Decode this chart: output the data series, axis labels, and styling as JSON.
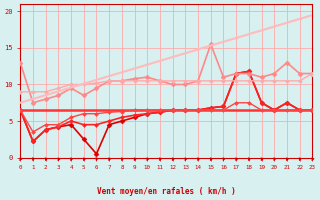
{
  "title": "",
  "xlabel": "Vent moyen/en rafales ( km/h )",
  "ylabel": "",
  "xlim": [
    0,
    23
  ],
  "ylim": [
    0,
    21
  ],
  "bg_color": "#d8f0f0",
  "grid_color": "#ffaaaa",
  "text_color": "#cc0000",
  "lines": [
    {
      "x": [
        0,
        1,
        2,
        3,
        4,
        5,
        6,
        7,
        8,
        9,
        10,
        11,
        12,
        13,
        14,
        15,
        16,
        17,
        18,
        19,
        20,
        21,
        22,
        23
      ],
      "y": [
        6.5,
        2.2,
        3.8,
        4.2,
        4.5,
        2.5,
        0.5,
        4.5,
        5.0,
        5.5,
        6.0,
        6.2,
        6.5,
        6.5,
        6.5,
        6.8,
        7.0,
        11.5,
        11.8,
        7.5,
        6.5,
        7.5,
        6.5,
        6.5
      ],
      "color": "#dd0000",
      "lw": 1.2,
      "marker": "D",
      "ms": 2.5
    },
    {
      "x": [
        0,
        1,
        2,
        3,
        4,
        5,
        6,
        7,
        8,
        9,
        10,
        11,
        12,
        13,
        14,
        15,
        16,
        17,
        18,
        19,
        20,
        21,
        22,
        23
      ],
      "y": [
        6.5,
        2.2,
        3.8,
        4.2,
        5.0,
        4.5,
        4.5,
        5.0,
        5.5,
        5.8,
        6.0,
        6.2,
        6.5,
        6.5,
        6.5,
        6.8,
        7.0,
        11.5,
        11.8,
        7.5,
        6.5,
        7.5,
        6.5,
        6.5
      ],
      "color": "#ff2222",
      "lw": 1.2,
      "marker": "D",
      "ms": 2.0
    },
    {
      "x": [
        0,
        1,
        2,
        3,
        4,
        5,
        6,
        7,
        8,
        9,
        10,
        11,
        12,
        13,
        14,
        15,
        16,
        17,
        18,
        19,
        20,
        21,
        22,
        23
      ],
      "y": [
        6.5,
        6.5,
        6.5,
        6.5,
        6.5,
        6.5,
        6.5,
        6.5,
        6.5,
        6.5,
        6.5,
        6.5,
        6.5,
        6.5,
        6.5,
        6.5,
        6.5,
        6.5,
        6.5,
        6.5,
        6.5,
        6.5,
        6.5,
        6.5
      ],
      "color": "#ff3333",
      "lw": 1.8,
      "marker": null,
      "ms": 0
    },
    {
      "x": [
        0,
        1,
        2,
        3,
        4,
        5,
        6,
        7,
        8,
        9,
        10,
        11,
        12,
        13,
        14,
        15,
        16,
        17,
        18,
        19,
        20,
        21,
        22,
        23
      ],
      "y": [
        6.5,
        3.5,
        4.5,
        4.5,
        5.5,
        6.0,
        6.0,
        6.2,
        6.3,
        6.5,
        6.5,
        6.5,
        6.5,
        6.5,
        6.5,
        6.5,
        6.5,
        7.5,
        7.5,
        6.5,
        6.5,
        6.5,
        6.5,
        6.5
      ],
      "color": "#ff4444",
      "lw": 1.0,
      "marker": "D",
      "ms": 2.0
    },
    {
      "x": [
        0,
        1,
        2,
        3,
        4,
        5,
        6,
        7,
        8,
        9,
        10,
        11,
        12,
        13,
        14,
        15,
        16,
        17,
        18,
        19,
        20,
        21,
        22,
        23
      ],
      "y": [
        13.0,
        7.5,
        8.0,
        8.5,
        9.5,
        8.5,
        9.5,
        10.5,
        10.5,
        10.8,
        11.0,
        10.5,
        10.0,
        10.0,
        10.5,
        15.5,
        11.0,
        11.5,
        11.5,
        11.0,
        11.5,
        13.0,
        11.5,
        11.5
      ],
      "color": "#ff8888",
      "lw": 1.2,
      "marker": "D",
      "ms": 2.5
    },
    {
      "x": [
        0,
        1,
        2,
        3,
        4,
        5,
        6,
        7,
        8,
        9,
        10,
        11,
        12,
        13,
        14,
        15,
        16,
        17,
        18,
        19,
        20,
        21,
        22,
        23
      ],
      "y": [
        9.0,
        9.0,
        9.0,
        9.5,
        10.0,
        10.0,
        10.2,
        10.5,
        10.5,
        10.5,
        10.5,
        10.5,
        10.5,
        10.5,
        10.5,
        10.5,
        10.5,
        10.5,
        10.5,
        10.5,
        10.5,
        10.5,
        10.5,
        11.5
      ],
      "color": "#ffaaaa",
      "lw": 1.0,
      "marker": "D",
      "ms": 2.0
    },
    {
      "x": [
        0,
        23
      ],
      "y": [
        7.5,
        19.5
      ],
      "color": "#ffbbbb",
      "lw": 1.5,
      "marker": null,
      "ms": 0
    }
  ],
  "xticks": [
    0,
    1,
    2,
    3,
    4,
    5,
    6,
    7,
    8,
    9,
    10,
    11,
    12,
    13,
    14,
    15,
    16,
    17,
    18,
    19,
    20,
    21,
    22,
    23
  ],
  "yticks": [
    0,
    5,
    10,
    15,
    20
  ],
  "wind_arrow_angles": [
    225,
    200,
    210,
    225,
    215,
    220,
    200,
    215,
    210,
    220,
    215,
    210,
    220,
    215,
    210,
    215,
    210,
    215,
    210,
    215,
    210,
    215,
    210,
    215
  ]
}
